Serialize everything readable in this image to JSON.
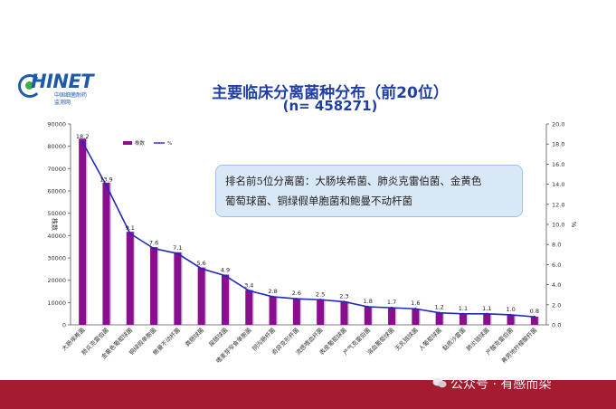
{
  "logo": {
    "word": "HINET",
    "sub1": "中国细菌耐药",
    "sub2": "监测网"
  },
  "header": {
    "title": "主要临床分离菌种分布（前20位）",
    "subtitle": "(n= 458271)"
  },
  "annotation": {
    "line1": "排名前5位分离菌：大肠埃希菌、肺炎克雷伯菌、金黄色",
    "line2": "葡萄球菌、铜绿假单胞菌和鲍曼不动杆菌"
  },
  "watermark": "公众号 · 有感而染",
  "colors": {
    "bar": "#8a0f8f",
    "line": "#1f2bb8",
    "title": "#1f3fa6",
    "footer": "#a51c30",
    "annotation_bg": "#d9e8f7"
  },
  "chart_data": {
    "type": "bar",
    "categories": [
      "大肠埃希菌",
      "肺炎克雷伯菌",
      "金黄色葡萄球菌",
      "铜绿假单胞菌",
      "鲍曼不动杆菌",
      "粪肠球菌",
      "屎肠球菌",
      "嗜麦芽窄食单胞菌",
      "阴沟肠杆菌",
      "奇异变形杆菌",
      "流感嗜血杆菌",
      "表皮葡萄球菌",
      "产气克雷伯菌",
      "溶血葡萄球菌",
      "无乳链球菌",
      "人葡萄球菌",
      "黏质沙雷菌",
      "肺炎链球菌",
      "产酸克雷伯菌",
      "弗劳地柠檬酸杆菌"
    ],
    "series": [
      {
        "name": "株数",
        "type": "bar",
        "axis": "left",
        "values": [
          83400,
          63700,
          41700,
          34800,
          32500,
          25700,
          22500,
          15600,
          12800,
          11900,
          11500,
          10500,
          8200,
          7800,
          7300,
          5500,
          5000,
          5000,
          4600,
          3700
        ]
      },
      {
        "name": "%",
        "type": "line",
        "axis": "right",
        "values": [
          18.2,
          13.9,
          9.1,
          7.6,
          7.1,
          5.6,
          4.9,
          3.4,
          2.8,
          2.6,
          2.5,
          2.3,
          1.8,
          1.7,
          1.6,
          1.2,
          1.1,
          1.1,
          1.0,
          0.8
        ]
      }
    ],
    "ylabel": "株数",
    "y2label": "%",
    "ylim": [
      0,
      90000
    ],
    "yticks": [
      "0",
      "10000",
      "20000",
      "30000",
      "40000",
      "50000",
      "60000",
      "70000",
      "80000",
      "90000"
    ],
    "y2lim": [
      0,
      20
    ],
    "y2ticks": [
      "0.0",
      "2.0",
      "4.0",
      "6.0",
      "8.0",
      "10.0",
      "12.0",
      "14.0",
      "16.0",
      "18.0",
      "20.0"
    ],
    "legend": [
      "株数",
      "%"
    ],
    "legend_position": "top-left"
  }
}
